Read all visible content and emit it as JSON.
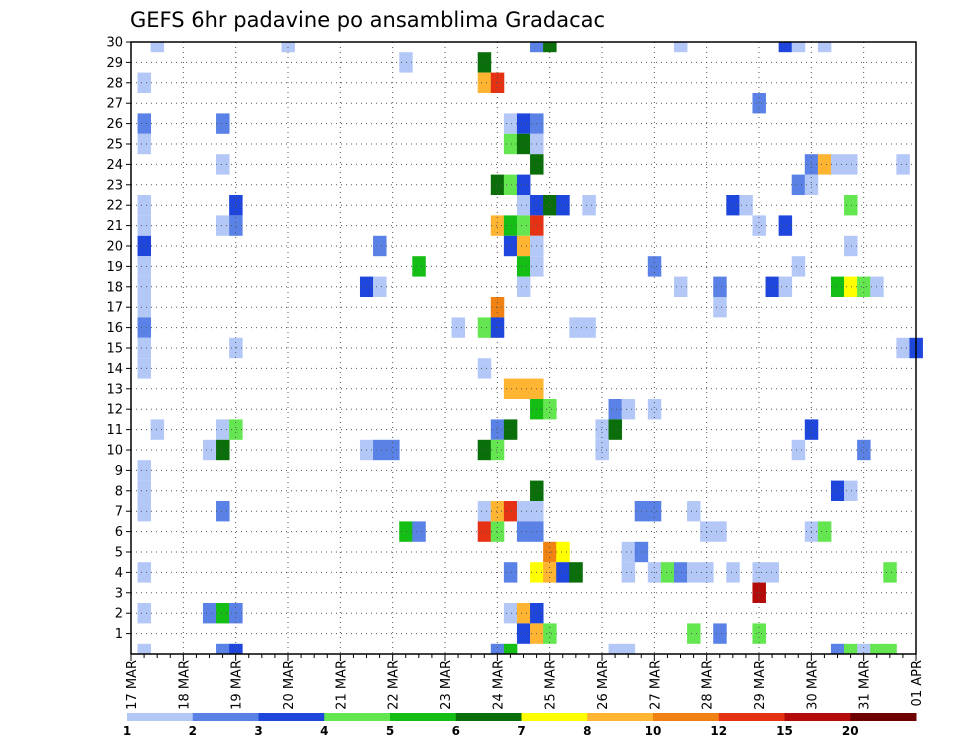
{
  "chart_data": {
    "type": "heatmap",
    "title": "GEFS 6hr padavine po ansamblima Gradacac",
    "xlabel": "",
    "ylabel": "",
    "x_ticks": [
      "17 MAR",
      "18 MAR",
      "19 MAR",
      "20 MAR",
      "21 MAR",
      "22 MAR",
      "23 MAR",
      "24 MAR",
      "25 MAR",
      "26 MAR",
      "27 MAR",
      "28 MAR",
      "29 MAR",
      "30 MAR",
      "31 MAR",
      "01 APR"
    ],
    "y_ticks": [
      "1",
      "2",
      "3",
      "4",
      "5",
      "6",
      "7",
      "8",
      "9",
      "10",
      "11",
      "12",
      "13",
      "14",
      "15",
      "16",
      "17",
      "18",
      "19",
      "20",
      "21",
      "22",
      "23",
      "24",
      "25",
      "26",
      "27",
      "28",
      "29",
      "30"
    ],
    "xlim": [
      "17 MAR 00",
      "01 APR 00"
    ],
    "ylim": [
      0,
      30
    ],
    "x_unit": "days from 17 MAR 00 UTC",
    "grid": true,
    "colorbar": {
      "levels": [
        "1",
        "2",
        "3",
        "4",
        "5",
        "6",
        "7",
        "8",
        "10",
        "12",
        "15",
        "20"
      ],
      "colors": [
        "#b4c8f8",
        "#5a82e6",
        "#1e46dc",
        "#64e650",
        "#14be14",
        "#0a6e0a",
        "#ffff00",
        "#ffb432",
        "#f08214",
        "#e63214",
        "#b40a0a",
        "#6e0000"
      ]
    },
    "cells": [
      {
        "day": 0.5,
        "member": 30,
        "c": 0
      },
      {
        "day": 3.0,
        "member": 30,
        "c": 0
      },
      {
        "day": 7.75,
        "member": 30,
        "c": 1
      },
      {
        "day": 8.0,
        "member": 30,
        "c": 5
      },
      {
        "day": 10.5,
        "member": 30,
        "c": 0
      },
      {
        "day": 12.5,
        "member": 30,
        "c": 2
      },
      {
        "day": 12.75,
        "member": 30,
        "c": 0
      },
      {
        "day": 13.25,
        "member": 30,
        "c": 0
      },
      {
        "day": 5.25,
        "member": 29,
        "c": 0
      },
      {
        "day": 6.75,
        "member": 29,
        "c": 5
      },
      {
        "day": 0.25,
        "member": 28,
        "c": 0
      },
      {
        "day": 6.75,
        "member": 28,
        "c": 7
      },
      {
        "day": 7.0,
        "member": 28,
        "c": 9
      },
      {
        "day": 12.0,
        "member": 27,
        "c": 1
      },
      {
        "day": 0.25,
        "member": 26,
        "c": 1
      },
      {
        "day": 1.75,
        "member": 26,
        "c": 1
      },
      {
        "day": 7.25,
        "member": 26,
        "c": 0
      },
      {
        "day": 7.5,
        "member": 26,
        "c": 2
      },
      {
        "day": 7.75,
        "member": 26,
        "c": 1
      },
      {
        "day": 0.25,
        "member": 25,
        "c": 0
      },
      {
        "day": 7.25,
        "member": 25,
        "c": 3
      },
      {
        "day": 7.5,
        "member": 25,
        "c": 5
      },
      {
        "day": 7.75,
        "member": 25,
        "c": 0
      },
      {
        "day": 1.75,
        "member": 24,
        "c": 0
      },
      {
        "day": 7.75,
        "member": 24,
        "c": 5
      },
      {
        "day": 13.0,
        "member": 24,
        "c": 1
      },
      {
        "day": 13.25,
        "member": 24,
        "c": 7
      },
      {
        "day": 13.5,
        "member": 24,
        "c": 0
      },
      {
        "day": 13.75,
        "member": 24,
        "c": 0
      },
      {
        "day": 14.75,
        "member": 24,
        "c": 0
      },
      {
        "day": 7.0,
        "member": 23,
        "c": 5
      },
      {
        "day": 7.25,
        "member": 23,
        "c": 3
      },
      {
        "day": 7.5,
        "member": 23,
        "c": 2
      },
      {
        "day": 12.75,
        "member": 23,
        "c": 1
      },
      {
        "day": 13.0,
        "member": 23,
        "c": 0
      },
      {
        "day": 0.25,
        "member": 22,
        "c": 0
      },
      {
        "day": 2.0,
        "member": 22,
        "c": 2
      },
      {
        "day": 7.5,
        "member": 22,
        "c": 0
      },
      {
        "day": 7.75,
        "member": 22,
        "c": 2
      },
      {
        "day": 8.0,
        "member": 22,
        "c": 5
      },
      {
        "day": 8.25,
        "member": 22,
        "c": 2
      },
      {
        "day": 8.75,
        "member": 22,
        "c": 0
      },
      {
        "day": 11.5,
        "member": 22,
        "c": 2
      },
      {
        "day": 11.75,
        "member": 22,
        "c": 0
      },
      {
        "day": 13.75,
        "member": 22,
        "c": 3
      },
      {
        "day": 0.25,
        "member": 21,
        "c": 0
      },
      {
        "day": 1.75,
        "member": 21,
        "c": 0
      },
      {
        "day": 2.0,
        "member": 21,
        "c": 1
      },
      {
        "day": 7.0,
        "member": 21,
        "c": 7
      },
      {
        "day": 7.25,
        "member": 21,
        "c": 4
      },
      {
        "day": 7.5,
        "member": 21,
        "c": 3
      },
      {
        "day": 7.75,
        "member": 21,
        "c": 9
      },
      {
        "day": 12.0,
        "member": 21,
        "c": 0
      },
      {
        "day": 12.5,
        "member": 21,
        "c": 2
      },
      {
        "day": 0.25,
        "member": 20,
        "c": 2
      },
      {
        "day": 4.75,
        "member": 20,
        "c": 1
      },
      {
        "day": 7.25,
        "member": 20,
        "c": 2
      },
      {
        "day": 7.5,
        "member": 20,
        "c": 7
      },
      {
        "day": 7.75,
        "member": 20,
        "c": 0
      },
      {
        "day": 13.75,
        "member": 20,
        "c": 0
      },
      {
        "day": 0.25,
        "member": 19,
        "c": 0
      },
      {
        "day": 5.5,
        "member": 19,
        "c": 4
      },
      {
        "day": 7.5,
        "member": 19,
        "c": 4
      },
      {
        "day": 7.75,
        "member": 19,
        "c": 0
      },
      {
        "day": 10.0,
        "member": 19,
        "c": 1
      },
      {
        "day": 12.75,
        "member": 19,
        "c": 0
      },
      {
        "day": 0.25,
        "member": 18,
        "c": 0
      },
      {
        "day": 4.5,
        "member": 18,
        "c": 2
      },
      {
        "day": 4.75,
        "member": 18,
        "c": 0
      },
      {
        "day": 7.5,
        "member": 18,
        "c": 0
      },
      {
        "day": 10.5,
        "member": 18,
        "c": 0
      },
      {
        "day": 11.25,
        "member": 18,
        "c": 1
      },
      {
        "day": 12.25,
        "member": 18,
        "c": 2
      },
      {
        "day": 12.5,
        "member": 18,
        "c": 0
      },
      {
        "day": 13.5,
        "member": 18,
        "c": 4
      },
      {
        "day": 13.75,
        "member": 18,
        "c": 6
      },
      {
        "day": 14.0,
        "member": 18,
        "c": 3
      },
      {
        "day": 14.25,
        "member": 18,
        "c": 0
      },
      {
        "day": 0.25,
        "member": 17,
        "c": 0
      },
      {
        "day": 7.0,
        "member": 17,
        "c": 8
      },
      {
        "day": 11.25,
        "member": 17,
        "c": 0
      },
      {
        "day": 0.25,
        "member": 16,
        "c": 1
      },
      {
        "day": 6.25,
        "member": 16,
        "c": 0
      },
      {
        "day": 6.75,
        "member": 16,
        "c": 3
      },
      {
        "day": 7.0,
        "member": 16,
        "c": 2
      },
      {
        "day": 8.5,
        "member": 16,
        "c": 0
      },
      {
        "day": 8.75,
        "member": 16,
        "c": 0
      },
      {
        "day": 0.25,
        "member": 15,
        "c": 0
      },
      {
        "day": 2.0,
        "member": 15,
        "c": 0
      },
      {
        "day": 14.75,
        "member": 15,
        "c": 0
      },
      {
        "day": 15.0,
        "member": 15,
        "c": 2
      },
      {
        "day": 0.25,
        "member": 14,
        "c": 0
      },
      {
        "day": 6.75,
        "member": 14,
        "c": 0
      },
      {
        "day": 7.25,
        "member": 13,
        "c": 7
      },
      {
        "day": 7.5,
        "member": 13,
        "c": 7
      },
      {
        "day": 7.75,
        "member": 13,
        "c": 7
      },
      {
        "day": 7.75,
        "member": 12,
        "c": 4
      },
      {
        "day": 8.0,
        "member": 12,
        "c": 3
      },
      {
        "day": 9.25,
        "member": 12,
        "c": 1
      },
      {
        "day": 9.5,
        "member": 12,
        "c": 0
      },
      {
        "day": 10.0,
        "member": 12,
        "c": 0
      },
      {
        "day": 0.5,
        "member": 11,
        "c": 0
      },
      {
        "day": 1.75,
        "member": 11,
        "c": 0
      },
      {
        "day": 2.0,
        "member": 11,
        "c": 3
      },
      {
        "day": 7.0,
        "member": 11,
        "c": 1
      },
      {
        "day": 7.25,
        "member": 11,
        "c": 5
      },
      {
        "day": 9.0,
        "member": 11,
        "c": 0
      },
      {
        "day": 9.25,
        "member": 11,
        "c": 5
      },
      {
        "day": 13.0,
        "member": 11,
        "c": 2
      },
      {
        "day": 1.5,
        "member": 10,
        "c": 0
      },
      {
        "day": 1.75,
        "member": 10,
        "c": 5
      },
      {
        "day": 4.5,
        "member": 10,
        "c": 0
      },
      {
        "day": 4.75,
        "member": 10,
        "c": 1
      },
      {
        "day": 5.0,
        "member": 10,
        "c": 1
      },
      {
        "day": 6.75,
        "member": 10,
        "c": 5
      },
      {
        "day": 7.0,
        "member": 10,
        "c": 3
      },
      {
        "day": 9.0,
        "member": 10,
        "c": 0
      },
      {
        "day": 12.75,
        "member": 10,
        "c": 0
      },
      {
        "day": 14.0,
        "member": 10,
        "c": 1
      },
      {
        "day": 0.25,
        "member": 9,
        "c": 0
      },
      {
        "day": 0.25,
        "member": 8,
        "c": 0
      },
      {
        "day": 7.75,
        "member": 8,
        "c": 5
      },
      {
        "day": 13.5,
        "member": 8,
        "c": 2
      },
      {
        "day": 13.75,
        "member": 8,
        "c": 0
      },
      {
        "day": 0.25,
        "member": 7,
        "c": 0
      },
      {
        "day": 1.75,
        "member": 7,
        "c": 1
      },
      {
        "day": 6.75,
        "member": 7,
        "c": 0
      },
      {
        "day": 7.0,
        "member": 7,
        "c": 7
      },
      {
        "day": 7.25,
        "member": 7,
        "c": 9
      },
      {
        "day": 7.5,
        "member": 7,
        "c": 0
      },
      {
        "day": 7.75,
        "member": 7,
        "c": 0
      },
      {
        "day": 9.75,
        "member": 7,
        "c": 1
      },
      {
        "day": 10.0,
        "member": 7,
        "c": 1
      },
      {
        "day": 10.75,
        "member": 7,
        "c": 0
      },
      {
        "day": 5.25,
        "member": 6,
        "c": 4
      },
      {
        "day": 5.5,
        "member": 6,
        "c": 1
      },
      {
        "day": 6.75,
        "member": 6,
        "c": 9
      },
      {
        "day": 7.0,
        "member": 6,
        "c": 3
      },
      {
        "day": 7.5,
        "member": 6,
        "c": 1
      },
      {
        "day": 7.75,
        "member": 6,
        "c": 1
      },
      {
        "day": 11.0,
        "member": 6,
        "c": 0
      },
      {
        "day": 11.25,
        "member": 6,
        "c": 0
      },
      {
        "day": 13.0,
        "member": 6,
        "c": 0
      },
      {
        "day": 13.25,
        "member": 6,
        "c": 3
      },
      {
        "day": 8.0,
        "member": 5,
        "c": 8
      },
      {
        "day": 8.25,
        "member": 5,
        "c": 6
      },
      {
        "day": 9.5,
        "member": 5,
        "c": 0
      },
      {
        "day": 9.75,
        "member": 5,
        "c": 1
      },
      {
        "day": 0.25,
        "member": 4,
        "c": 0
      },
      {
        "day": 7.25,
        "member": 4,
        "c": 1
      },
      {
        "day": 7.75,
        "member": 4,
        "c": 6
      },
      {
        "day": 8.0,
        "member": 4,
        "c": 7
      },
      {
        "day": 8.25,
        "member": 4,
        "c": 2
      },
      {
        "day": 8.5,
        "member": 4,
        "c": 5
      },
      {
        "day": 9.5,
        "member": 4,
        "c": 0
      },
      {
        "day": 10.0,
        "member": 4,
        "c": 0
      },
      {
        "day": 10.25,
        "member": 4,
        "c": 3
      },
      {
        "day": 10.5,
        "member": 4,
        "c": 1
      },
      {
        "day": 10.75,
        "member": 4,
        "c": 0
      },
      {
        "day": 11.0,
        "member": 4,
        "c": 0
      },
      {
        "day": 11.5,
        "member": 4,
        "c": 0
      },
      {
        "day": 12.0,
        "member": 4,
        "c": 0
      },
      {
        "day": 12.25,
        "member": 4,
        "c": 0
      },
      {
        "day": 14.5,
        "member": 4,
        "c": 3
      },
      {
        "day": 12.0,
        "member": 3,
        "c": 10
      },
      {
        "day": 0.25,
        "member": 2,
        "c": 0
      },
      {
        "day": 1.5,
        "member": 2,
        "c": 1
      },
      {
        "day": 1.75,
        "member": 2,
        "c": 4
      },
      {
        "day": 2.0,
        "member": 2,
        "c": 1
      },
      {
        "day": 7.25,
        "member": 2,
        "c": 0
      },
      {
        "day": 7.5,
        "member": 2,
        "c": 7
      },
      {
        "day": 7.75,
        "member": 2,
        "c": 2
      },
      {
        "day": 7.5,
        "member": 1,
        "c": 2
      },
      {
        "day": 7.75,
        "member": 1,
        "c": 7
      },
      {
        "day": 8.0,
        "member": 1,
        "c": 3
      },
      {
        "day": 10.75,
        "member": 1,
        "c": 3
      },
      {
        "day": 11.25,
        "member": 1,
        "c": 1
      },
      {
        "day": 12.0,
        "member": 1,
        "c": 3
      },
      {
        "day": 0.25,
        "member": 0,
        "c": 0
      },
      {
        "day": 1.75,
        "member": 0,
        "c": 1
      },
      {
        "day": 2.0,
        "member": 0,
        "c": 2
      },
      {
        "day": 7.0,
        "member": 0,
        "c": 1
      },
      {
        "day": 7.25,
        "member": 0,
        "c": 4
      },
      {
        "day": 9.25,
        "member": 0,
        "c": 0
      },
      {
        "day": 9.5,
        "member": 0,
        "c": 0
      },
      {
        "day": 13.5,
        "member": 0,
        "c": 1
      },
      {
        "day": 13.75,
        "member": 0,
        "c": 3
      },
      {
        "day": 14.0,
        "member": 0,
        "c": 0
      },
      {
        "day": 14.25,
        "member": 0,
        "c": 3
      },
      {
        "day": 14.5,
        "member": 0,
        "c": 3
      }
    ]
  }
}
